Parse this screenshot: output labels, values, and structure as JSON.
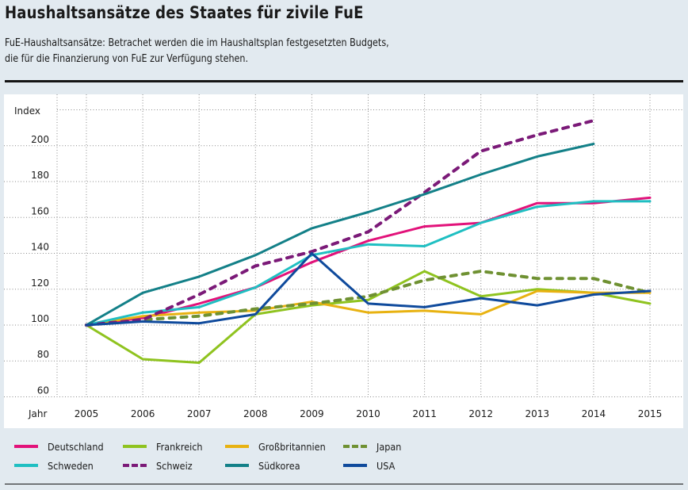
{
  "header": {
    "title": "Haushaltsansätze des Staates für zivile FuE",
    "subtitle_lines": [
      "FuE-Haushaltsansätze: Betrachet werden die im Haushaltsplan festgesetzten Budgets,",
      "die für die Finanzierung von FuE zur Verfügung stehen."
    ]
  },
  "chart_data": {
    "type": "line",
    "title": "Haushaltsansätze des Staates für zivile FuE",
    "xlabel": "Jahr",
    "ylabel": "Index",
    "x": [
      "2005",
      "2006",
      "2007",
      "2008",
      "2009",
      "2010",
      "2011",
      "2012",
      "2013",
      "2014",
      "2015"
    ],
    "yticks": [
      60,
      80,
      100,
      120,
      140,
      160,
      180,
      200
    ],
    "ylim": [
      56,
      222
    ],
    "grid": true,
    "legend_position": "bottom",
    "series": [
      {
        "name": "Deutschland",
        "color": "#e2127a",
        "dashed": false,
        "values": [
          100,
          104,
          112,
          121,
          135,
          147,
          155,
          157,
          168,
          168,
          171
        ]
      },
      {
        "name": "Frankreich",
        "color": "#8fc31f",
        "dashed": false,
        "values": [
          100,
          81,
          79,
          106,
          111,
          114,
          130,
          116,
          120,
          118,
          112
        ]
      },
      {
        "name": "Großbritannien",
        "color": "#e8b211",
        "dashed": false,
        "values": [
          100,
          105,
          107,
          108,
          113,
          107,
          108,
          106,
          119,
          118,
          118
        ]
      },
      {
        "name": "Japan",
        "color": "#6f9132",
        "dashed": true,
        "values": [
          100,
          103,
          105,
          109,
          112,
          116,
          125,
          130,
          126,
          126,
          118
        ]
      },
      {
        "name": "Schweden",
        "color": "#1fbfc2",
        "dashed": false,
        "values": [
          100,
          107,
          110,
          121,
          139,
          145,
          144,
          157,
          166,
          169,
          169
        ]
      },
      {
        "name": "Schweiz",
        "color": "#7b1a78",
        "dashed": true,
        "values": [
          100,
          103,
          117,
          133,
          141,
          152,
          174,
          197,
          206,
          214,
          null
        ]
      },
      {
        "name": "Südkorea",
        "color": "#138088",
        "dashed": false,
        "values": [
          100,
          118,
          127,
          139,
          154,
          163,
          173,
          184,
          194,
          201,
          null
        ]
      },
      {
        "name": "USA",
        "color": "#0f4a9c",
        "dashed": false,
        "values": [
          100,
          102,
          101,
          106,
          140,
          112,
          110,
          115,
          111,
          117,
          119
        ]
      }
    ]
  },
  "legend": {
    "items": [
      {
        "label": "Deutschland"
      },
      {
        "label": "Frankreich"
      },
      {
        "label": "Großbritannien"
      },
      {
        "label": "Japan"
      },
      {
        "label": "Schweden"
      },
      {
        "label": "Schweiz"
      },
      {
        "label": "Südkorea"
      },
      {
        "label": "USA"
      }
    ]
  }
}
